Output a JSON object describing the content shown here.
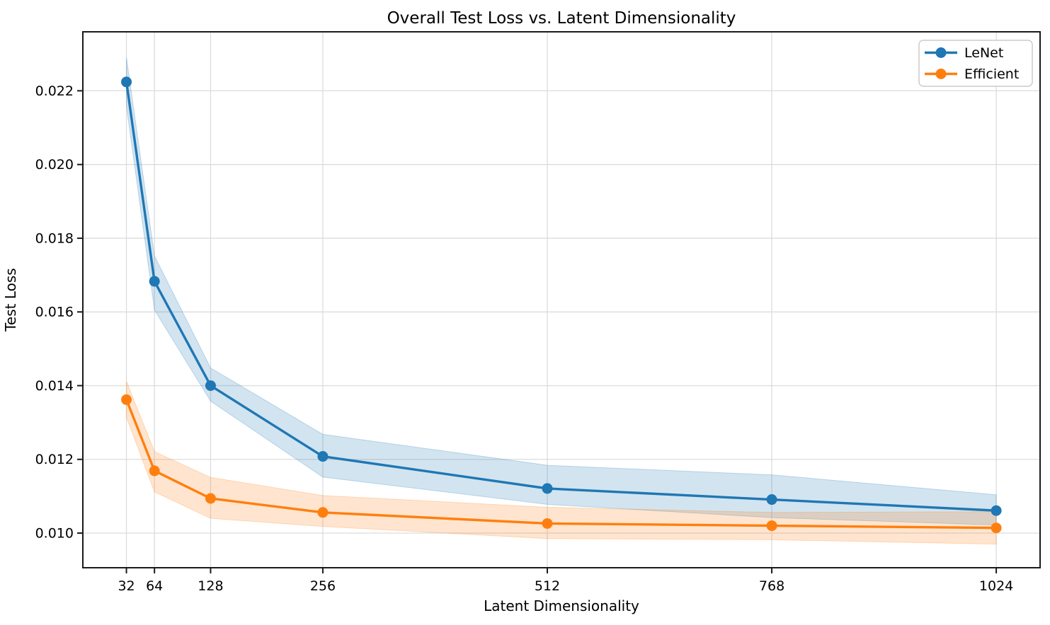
{
  "chart_data": {
    "type": "line",
    "title": "Overall Test Loss vs. Latent Dimensionality",
    "xlabel": "Latent Dimensionality",
    "ylabel": "Test Loss",
    "x": [
      32,
      64,
      128,
      256,
      512,
      768,
      1024
    ],
    "x_tick_labels": [
      "32",
      "64",
      "128",
      "256",
      "512",
      "768",
      "1024"
    ],
    "y_ticks": [
      0.01,
      0.012,
      0.014,
      0.016,
      0.018,
      0.02,
      0.022
    ],
    "y_tick_labels": [
      "0.010",
      "0.012",
      "0.014",
      "0.016",
      "0.018",
      "0.020",
      "0.022"
    ],
    "xlim": [
      -17.7,
      1074.0
    ],
    "ylim": [
      0.00906,
      0.0236
    ],
    "grid": true,
    "grid_color": "#dcdcdc",
    "spine_color": "#1a1a1a",
    "background_color": "#ffffff",
    "band_alpha": 0.2,
    "legend_position": "upper right",
    "series": [
      {
        "name": "LeNet",
        "color": "#1f77b4",
        "values": [
          0.02224,
          0.01683,
          0.014,
          0.01208,
          0.01121,
          0.01091,
          0.01061
        ],
        "band_upper": [
          0.0229,
          0.01752,
          0.01448,
          0.01268,
          0.01184,
          0.01158,
          0.01104
        ],
        "band_lower": [
          0.02158,
          0.01605,
          0.01358,
          0.01152,
          0.01078,
          0.01042,
          0.01022
        ]
      },
      {
        "name": "Efficient",
        "color": "#ff7f0e",
        "values": [
          0.01362,
          0.01169,
          0.01094,
          0.01056,
          0.01026,
          0.0102,
          0.01014
        ],
        "band_upper": [
          0.01412,
          0.01221,
          0.01151,
          0.01102,
          0.0107,
          0.01056,
          0.01058
        ],
        "band_lower": [
          0.01314,
          0.01112,
          0.0104,
          0.01018,
          0.00985,
          0.00982,
          0.0097
        ]
      }
    ]
  }
}
